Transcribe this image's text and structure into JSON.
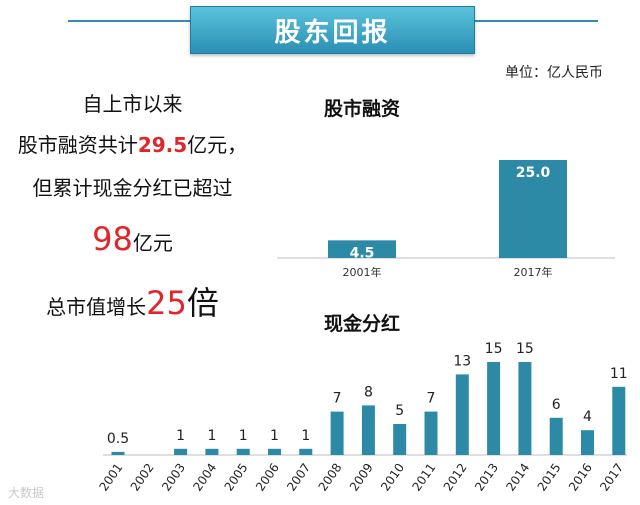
{
  "header": {
    "title": "股东回报"
  },
  "unit_label": "单位：亿人民币",
  "summary": {
    "line1": "自上市以来",
    "line2_prefix": "股市融资共计",
    "line2_value": "29.5",
    "line2_suffix": "亿元，",
    "line3": "但累计现金分红已超过",
    "line4_value": "98",
    "line4_suffix": "亿元",
    "line5_prefix": "总市值增长",
    "line5_value": "25",
    "line5_suffix": "倍"
  },
  "colors": {
    "bar": "#2c8aa6",
    "accent": "#e0252b",
    "title_bg": "#3aa6c8"
  },
  "watermark": "大数据",
  "chart_data": [
    {
      "type": "bar",
      "title": "股市融资",
      "categories": [
        "2001年",
        "2017年"
      ],
      "values": [
        4.5,
        25.0
      ],
      "value_labels": [
        "4.5",
        "25.0"
      ],
      "label_position": "inside-top",
      "grid": false
    },
    {
      "type": "bar",
      "title": "现金分红",
      "categories": [
        "2001",
        "2002",
        "2003",
        "2004",
        "2005",
        "2006",
        "2007",
        "2008",
        "2009",
        "2010",
        "2011",
        "2012",
        "2013",
        "2014",
        "2015",
        "2016",
        "2017"
      ],
      "values": [
        0.5,
        0,
        1,
        1,
        1,
        1,
        1,
        7,
        8,
        5,
        7,
        13,
        15,
        15,
        6,
        4,
        11
      ],
      "value_labels": [
        "0.5",
        "",
        "1",
        "1",
        "1",
        "1",
        "1",
        "7",
        "8",
        "5",
        "7",
        "13",
        "15",
        "15",
        "6",
        "4",
        "11"
      ],
      "label_position": "above",
      "grid": false
    }
  ]
}
